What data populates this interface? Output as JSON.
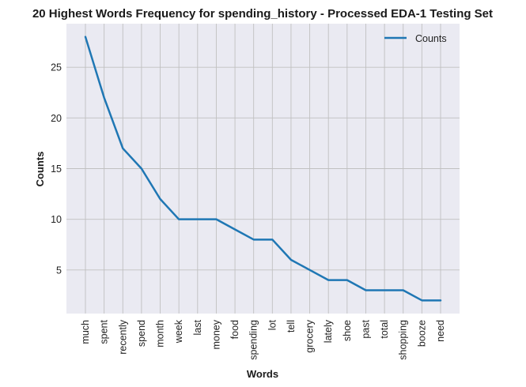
{
  "chart_data": {
    "type": "line",
    "title": "20 Highest Words Frequency for spending_history - Processed EDA-1 Testing Set",
    "xlabel": "Words",
    "ylabel": "Counts",
    "categories": [
      "much",
      "spent",
      "recently",
      "spend",
      "month",
      "week",
      "last",
      "money",
      "food",
      "spending",
      "lot",
      "tell",
      "grocery",
      "lately",
      "shoe",
      "past",
      "total",
      "shopping",
      "booze",
      "need"
    ],
    "series": [
      {
        "name": "Counts",
        "values": [
          28,
          22,
          17,
          15,
          12,
          10,
          10,
          10,
          9,
          8,
          8,
          6,
          5,
          4,
          4,
          3,
          3,
          3,
          2,
          2
        ],
        "color": "#1f77b4"
      }
    ],
    "ylim": [
      0.7,
      29.3
    ],
    "yticks": [
      5,
      10,
      15,
      20,
      25
    ],
    "grid": true,
    "legend_position": "top-right",
    "background_color": "#eaeaf2",
    "grid_color": "#c0c0c0"
  }
}
